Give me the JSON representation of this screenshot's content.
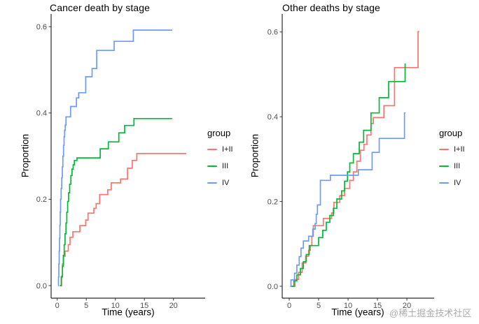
{
  "watermark": "@稀土掘金技术社区",
  "legend": {
    "title": "group",
    "items": [
      {
        "label": "I+II",
        "color": "#F8766D"
      },
      {
        "label": "III",
        "color": "#00BA38"
      },
      {
        "label": "IV",
        "color": "#6E9BF5"
      }
    ]
  },
  "axis": {
    "tick_color": "#333333",
    "tick_label_color": "#4d4d4d",
    "line_color": "#2b2b2b"
  },
  "chart_data": [
    {
      "type": "line",
      "subtype": "step-cumulative-incidence",
      "title": "Cancer death by stage",
      "xlabel": "Time (years)",
      "ylabel": "Proportion",
      "xlim": [
        0,
        22.5
      ],
      "ylim": [
        0,
        0.62
      ],
      "x_ticks": [
        0,
        5,
        10,
        15,
        20
      ],
      "y_ticks": [
        "0.0",
        "0.2",
        "0.4",
        "0.6"
      ],
      "grid": false,
      "legend_position": "right",
      "series": [
        {
          "name": "I+II",
          "color": "#F8766D",
          "end": 22.2,
          "points": [
            [
              0.6,
              0
            ],
            [
              0.75,
              0.022
            ],
            [
              0.9,
              0.05
            ],
            [
              1.1,
              0.068
            ],
            [
              1.35,
              0.08
            ],
            [
              1.9,
              0.095
            ],
            [
              2.2,
              0.112
            ],
            [
              2.7,
              0.125
            ],
            [
              3.9,
              0.139
            ],
            [
              4.9,
              0.152
            ],
            [
              5.3,
              0.168
            ],
            [
              6.3,
              0.179
            ],
            [
              6.7,
              0.19
            ],
            [
              7.3,
              0.211
            ],
            [
              8.7,
              0.222
            ],
            [
              9.3,
              0.238
            ],
            [
              10.9,
              0.247
            ],
            [
              12.1,
              0.272
            ],
            [
              12.9,
              0.29
            ],
            [
              13.7,
              0.306
            ]
          ]
        },
        {
          "name": "III",
          "color": "#00BA38",
          "end": 19.8,
          "points": [
            [
              0.45,
              0
            ],
            [
              0.7,
              0.02
            ],
            [
              0.9,
              0.045
            ],
            [
              1.05,
              0.07
            ],
            [
              1.2,
              0.095
            ],
            [
              1.35,
              0.12
            ],
            [
              1.5,
              0.145
            ],
            [
              1.65,
              0.17
            ],
            [
              1.8,
              0.195
            ],
            [
              1.95,
              0.215
            ],
            [
              2.15,
              0.235
            ],
            [
              2.35,
              0.255
            ],
            [
              2.55,
              0.27
            ],
            [
              2.75,
              0.28
            ],
            [
              2.95,
              0.29
            ],
            [
              3.4,
              0.296
            ],
            [
              7.4,
              0.317
            ],
            [
              8.8,
              0.333
            ],
            [
              10.6,
              0.354
            ],
            [
              11.6,
              0.371
            ],
            [
              13.2,
              0.387
            ]
          ]
        },
        {
          "name": "IV",
          "color": "#6E9BF5",
          "end": 19.8,
          "points": [
            [
              0.15,
              0
            ],
            [
              0.22,
              0.02
            ],
            [
              0.28,
              0.05
            ],
            [
              0.34,
              0.08
            ],
            [
              0.4,
              0.11
            ],
            [
              0.46,
              0.14
            ],
            [
              0.52,
              0.17
            ],
            [
              0.58,
              0.2
            ],
            [
              0.68,
              0.225
            ],
            [
              0.78,
              0.25
            ],
            [
              0.88,
              0.275
            ],
            [
              0.98,
              0.3
            ],
            [
              1.08,
              0.325
            ],
            [
              1.18,
              0.345
            ],
            [
              1.28,
              0.36
            ],
            [
              1.38,
              0.372
            ],
            [
              1.5,
              0.391
            ],
            [
              2.3,
              0.415
            ],
            [
              3.3,
              0.435
            ],
            [
              3.7,
              0.447
            ],
            [
              4.9,
              0.484
            ],
            [
              6.0,
              0.503
            ],
            [
              6.8,
              0.545
            ],
            [
              9.8,
              0.566
            ],
            [
              13.1,
              0.592
            ]
          ]
        }
      ]
    },
    {
      "type": "line",
      "subtype": "step-cumulative-incidence",
      "title": "Other deaths by stage",
      "xlabel": "Time (years)",
      "ylabel": "Proportion",
      "xlim": [
        0,
        22.5
      ],
      "ylim": [
        0,
        0.62
      ],
      "x_ticks": [
        0,
        5,
        10,
        15,
        20
      ],
      "y_ticks": [
        "0.0",
        "0.2",
        "0.4",
        "0.6"
      ],
      "grid": false,
      "legend_position": "right",
      "series": [
        {
          "name": "I+II",
          "color": "#F8766D",
          "end": 22.1,
          "points": [
            [
              0.4,
              0
            ],
            [
              1.0,
              0.016
            ],
            [
              1.6,
              0.033
            ],
            [
              2.2,
              0.055
            ],
            [
              2.8,
              0.071
            ],
            [
              3.3,
              0.085
            ],
            [
              3.6,
              0.096
            ],
            [
              3.85,
              0.118
            ],
            [
              4.1,
              0.143
            ],
            [
              5.8,
              0.16
            ],
            [
              7.2,
              0.173
            ],
            [
              7.6,
              0.198
            ],
            [
              8.6,
              0.214
            ],
            [
              9.4,
              0.231
            ],
            [
              10.3,
              0.25
            ],
            [
              10.9,
              0.27
            ],
            [
              11.5,
              0.295
            ],
            [
              12.1,
              0.321
            ],
            [
              12.7,
              0.335
            ],
            [
              13.2,
              0.357
            ],
            [
              13.9,
              0.384
            ],
            [
              14.3,
              0.398
            ],
            [
              16.1,
              0.426
            ],
            [
              17.9,
              0.516
            ],
            [
              21.9,
              0.601
            ]
          ]
        },
        {
          "name": "III",
          "color": "#00BA38",
          "end": 19.8,
          "points": [
            [
              0.3,
              0
            ],
            [
              0.8,
              0.013
            ],
            [
              1.3,
              0.027
            ],
            [
              1.9,
              0.042
            ],
            [
              2.4,
              0.058
            ],
            [
              2.9,
              0.075
            ],
            [
              3.4,
              0.096
            ],
            [
              5.0,
              0.115
            ],
            [
              5.7,
              0.132
            ],
            [
              6.3,
              0.151
            ],
            [
              6.9,
              0.167
            ],
            [
              7.5,
              0.184
            ],
            [
              8.1,
              0.206
            ],
            [
              8.9,
              0.225
            ],
            [
              9.4,
              0.248
            ],
            [
              9.9,
              0.27
            ],
            [
              10.3,
              0.291
            ],
            [
              10.9,
              0.313
            ],
            [
              11.9,
              0.34
            ],
            [
              12.65,
              0.368
            ],
            [
              13.9,
              0.409
            ],
            [
              15.3,
              0.445
            ],
            [
              16.9,
              0.483
            ],
            [
              19.7,
              0.524
            ]
          ]
        },
        {
          "name": "IV",
          "color": "#6E9BF5",
          "end": 19.75,
          "points": [
            [
              0.15,
              0
            ],
            [
              0.3,
              0.015
            ],
            [
              0.9,
              0.031
            ],
            [
              1.3,
              0.05
            ],
            [
              1.7,
              0.07
            ],
            [
              2.0,
              0.09
            ],
            [
              2.4,
              0.107
            ],
            [
              3.3,
              0.118
            ],
            [
              4.0,
              0.135
            ],
            [
              4.4,
              0.148
            ],
            [
              4.6,
              0.17
            ],
            [
              4.8,
              0.192
            ],
            [
              5.3,
              0.25
            ],
            [
              7.0,
              0.262
            ],
            [
              11.75,
              0.275
            ],
            [
              14.1,
              0.316
            ],
            [
              15.3,
              0.349
            ],
            [
              19.6,
              0.409
            ]
          ]
        }
      ]
    }
  ]
}
